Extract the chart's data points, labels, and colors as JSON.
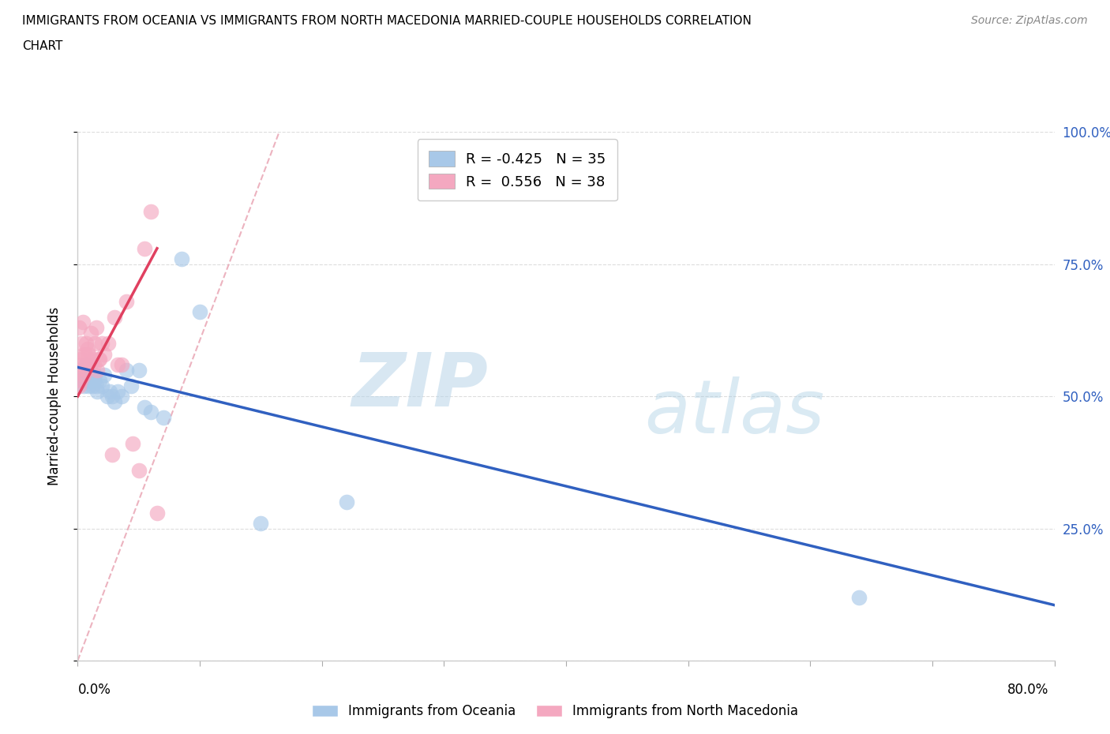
{
  "title_line1": "IMMIGRANTS FROM OCEANIA VS IMMIGRANTS FROM NORTH MACEDONIA MARRIED-COUPLE HOUSEHOLDS CORRELATION",
  "title_line2": "CHART",
  "source": "Source: ZipAtlas.com",
  "ylabel": "Married-couple Households",
  "y_ticks": [
    0.0,
    0.25,
    0.5,
    0.75,
    1.0
  ],
  "y_tick_labels": [
    "",
    "25.0%",
    "50.0%",
    "75.0%",
    "100.0%"
  ],
  "xlim": [
    0.0,
    0.8
  ],
  "ylim": [
    0.0,
    1.0
  ],
  "oceania_label": "Immigrants from Oceania",
  "macedonian_label": "Immigrants from North Macedonia",
  "oceania_R": -0.425,
  "oceania_N": 35,
  "macedonian_R": 0.556,
  "macedonian_N": 38,
  "oceania_color": "#A8C8E8",
  "macedonian_color": "#F4A8C0",
  "oceania_line_color": "#3060C0",
  "macedonian_line_color": "#E04060",
  "ref_line_color": "#E8A0B0",
  "oceania_x": [
    0.002,
    0.003,
    0.004,
    0.005,
    0.006,
    0.007,
    0.008,
    0.009,
    0.01,
    0.011,
    0.012,
    0.013,
    0.014,
    0.015,
    0.016,
    0.018,
    0.02,
    0.022,
    0.024,
    0.026,
    0.028,
    0.03,
    0.033,
    0.036,
    0.04,
    0.044,
    0.05,
    0.055,
    0.06,
    0.07,
    0.085,
    0.1,
    0.15,
    0.22,
    0.64
  ],
  "oceania_y": [
    0.54,
    0.53,
    0.55,
    0.52,
    0.54,
    0.56,
    0.53,
    0.52,
    0.54,
    0.53,
    0.52,
    0.53,
    0.54,
    0.52,
    0.51,
    0.53,
    0.52,
    0.54,
    0.5,
    0.51,
    0.5,
    0.49,
    0.51,
    0.5,
    0.55,
    0.52,
    0.55,
    0.48,
    0.47,
    0.46,
    0.76,
    0.66,
    0.26,
    0.3,
    0.12
  ],
  "macedonian_x": [
    0.0,
    0.001,
    0.001,
    0.002,
    0.002,
    0.003,
    0.003,
    0.004,
    0.005,
    0.005,
    0.006,
    0.006,
    0.007,
    0.007,
    0.008,
    0.009,
    0.01,
    0.011,
    0.012,
    0.013,
    0.014,
    0.015,
    0.016,
    0.017,
    0.018,
    0.02,
    0.022,
    0.025,
    0.028,
    0.03,
    0.033,
    0.036,
    0.04,
    0.045,
    0.05,
    0.055,
    0.06,
    0.065
  ],
  "macedonian_y": [
    0.55,
    0.63,
    0.52,
    0.56,
    0.53,
    0.57,
    0.6,
    0.64,
    0.58,
    0.54,
    0.56,
    0.58,
    0.6,
    0.55,
    0.59,
    0.58,
    0.56,
    0.62,
    0.57,
    0.56,
    0.6,
    0.63,
    0.55,
    0.57,
    0.57,
    0.6,
    0.58,
    0.6,
    0.39,
    0.65,
    0.56,
    0.56,
    0.68,
    0.41,
    0.36,
    0.78,
    0.85,
    0.28
  ],
  "oceania_trend_x": [
    0.0,
    0.8
  ],
  "oceania_trend_y": [
    0.555,
    0.105
  ],
  "macedonian_trend_x": [
    0.0,
    0.065
  ],
  "macedonian_trend_y": [
    0.5,
    0.78
  ],
  "ref_line_x": [
    0.0,
    0.165
  ],
  "ref_line_y": [
    0.0,
    1.0
  ],
  "watermark_zip": "ZIP",
  "watermark_atlas": "atlas",
  "background_color": "#FFFFFF",
  "grid_color": "#DDDDDD"
}
